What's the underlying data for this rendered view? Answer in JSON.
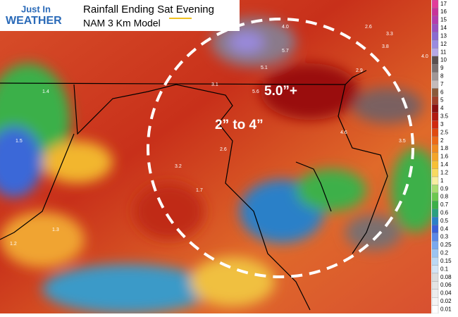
{
  "header": {
    "logo_top": "Just In",
    "logo_bottom": "WEATHER",
    "title": "Rainfall Ending Sat Evening",
    "subtitle": "NAM 3 Km Model"
  },
  "annotations": [
    "5.0”+",
    "2” to 4”"
  ],
  "map_labels": [
    "4.0",
    "2.6",
    "3.3",
    "3.8",
    "4.0",
    "5.1",
    "5.7",
    "5.6",
    "2.9",
    "4.6",
    "3.5",
    "3.1",
    "2.6",
    "1.4",
    "1.5",
    "3.2",
    "1.3",
    "1.2",
    "1.7"
  ],
  "colorbar": {
    "ticks": [
      17,
      16,
      15,
      14,
      13,
      12,
      11,
      10,
      9,
      8,
      7,
      6,
      5,
      4,
      3.5,
      3,
      2.5,
      2,
      1.8,
      1.6,
      1.4,
      1.2,
      1,
      0.9,
      0.8,
      0.7,
      0.6,
      0.5,
      0.4,
      0.3,
      0.25,
      0.2,
      0.15,
      0.1,
      0.08,
      0.06,
      0.04,
      0.02,
      0.01
    ],
    "colors": [
      "#e23c9a",
      "#c8329a",
      "#b43cae",
      "#9a50c0",
      "#8a6ad0",
      "#9a8ade",
      "#b6a8e6",
      "#5a5050",
      "#7a7070",
      "#a09696",
      "#c4baba",
      "#8a5a3a",
      "#a0402a",
      "#8a1010",
      "#b01a10",
      "#d02a10",
      "#e04a10",
      "#ec6a18",
      "#f08a20",
      "#f4a428",
      "#f6c036",
      "#f8da60",
      "#f6eea0",
      "#a8dc70",
      "#6cc850",
      "#3cb048",
      "#2aa080",
      "#2a80c8",
      "#3a60d8",
      "#5a86e6",
      "#7aa8ee",
      "#9cc4f2",
      "#bcd8f4",
      "#d4e4f4",
      "#dcdcdc",
      "#e4e4e4",
      "#ececec",
      "#f4f4f4",
      "#ffffff"
    ]
  }
}
